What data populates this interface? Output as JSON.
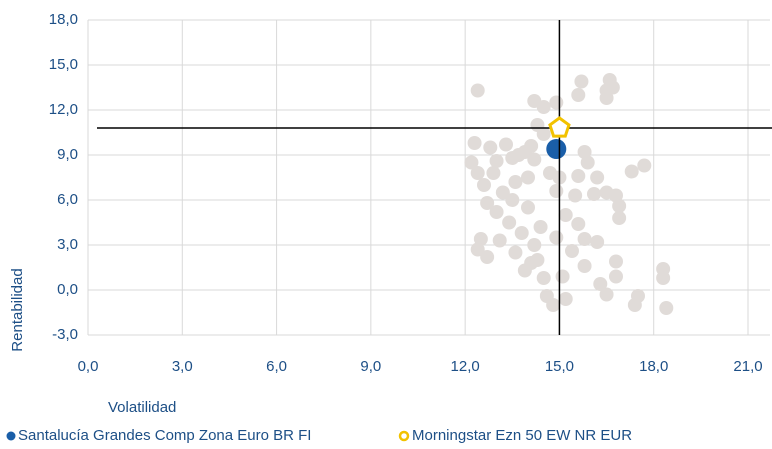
{
  "chart_data": {
    "type": "scatter",
    "xlabel": "Volatilidad",
    "ylabel": "Rentabilidad",
    "xlim": [
      0,
      21
    ],
    "ylim": [
      -3,
      18
    ],
    "xticks": [
      {
        "value": 0,
        "label": "0,0"
      },
      {
        "value": 3,
        "label": "3,0"
      },
      {
        "value": 6,
        "label": "6,0"
      },
      {
        "value": 9,
        "label": "9,0"
      },
      {
        "value": 12,
        "label": "12,0"
      },
      {
        "value": 15,
        "label": "15,0"
      },
      {
        "value": 18,
        "label": "18,0"
      },
      {
        "value": 21,
        "label": "21,0"
      }
    ],
    "yticks": [
      {
        "value": -3,
        "label": "-3,0"
      },
      {
        "value": 0,
        "label": "0,0"
      },
      {
        "value": 3,
        "label": "3,0"
      },
      {
        "value": 6,
        "label": "6,0"
      },
      {
        "value": 9,
        "label": "9,0"
      },
      {
        "value": 12,
        "label": "12,0"
      },
      {
        "value": 15,
        "label": "15,0"
      },
      {
        "value": 18,
        "label": "18,0"
      }
    ],
    "grid": true,
    "series": [
      {
        "color": "#e0dbd8",
        "x": [
          12.4,
          14.2,
          14.5,
          14.9,
          15.7,
          15.6,
          16.5,
          16.6,
          16.5,
          16.7,
          12.3,
          12.2,
          12.4,
          12.6,
          12.8,
          13,
          13.3,
          13.5,
          13.7,
          13.9,
          14.1,
          14.3,
          14.5,
          14.2,
          14,
          13.6,
          13.2,
          12.7,
          13,
          13.4,
          13.8,
          13.1,
          12.5,
          12.4,
          12.7,
          13.6,
          14.1,
          14.5,
          14.6,
          14.8,
          15.1,
          14.3,
          14.9,
          15.2,
          14.9,
          15,
          15.5,
          15.6,
          15.8,
          15.9,
          16.2,
          16.1,
          16.5,
          16.8,
          17.3,
          17.7,
          16.9,
          16.9,
          15.6,
          15.8,
          16.2,
          15.4,
          15.8,
          16.8,
          16.8,
          16.3,
          16.5,
          17.5,
          17.4,
          18.3,
          18.3,
          18.4,
          14,
          14.4,
          13.9,
          14.2,
          15.2,
          12.9,
          13.5,
          14.7
        ],
        "values": [
          13.3,
          12.6,
          12.2,
          12.5,
          13.9,
          13,
          13.3,
          14,
          12.8,
          13.5,
          9.8,
          8.5,
          7.8,
          7,
          9.5,
          8.6,
          9.7,
          8.8,
          9,
          9.2,
          9.6,
          11,
          10.4,
          8.7,
          7.5,
          7.2,
          6.5,
          5.8,
          5.2,
          4.5,
          3.8,
          3.3,
          3.4,
          2.7,
          2.2,
          2.5,
          1.8,
          0.8,
          -0.4,
          -1,
          0.9,
          2,
          3.5,
          5,
          6.6,
          7.5,
          6.3,
          7.6,
          9.2,
          8.5,
          7.5,
          6.4,
          6.5,
          6.3,
          7.9,
          8.3,
          5.6,
          4.8,
          4.4,
          3.4,
          3.2,
          2.6,
          1.6,
          1.9,
          0.9,
          0.4,
          -0.3,
          -0.4,
          -1,
          1.4,
          0.8,
          -1.2,
          5.5,
          4.2,
          1.3,
          3,
          -0.6,
          7.8,
          6,
          7.8
        ]
      },
      {
        "name": "Santalucía Grandes Comp Zona Euro BR FI",
        "color": "#1a5ea8",
        "x": [
          14.9
        ],
        "values": [
          9.4
        ]
      },
      {
        "name": "Morningstar Ezn 50 EW NR EUR",
        "color": "#f2c200",
        "x": [
          15.0
        ],
        "values": [
          10.8
        ]
      }
    ]
  }
}
